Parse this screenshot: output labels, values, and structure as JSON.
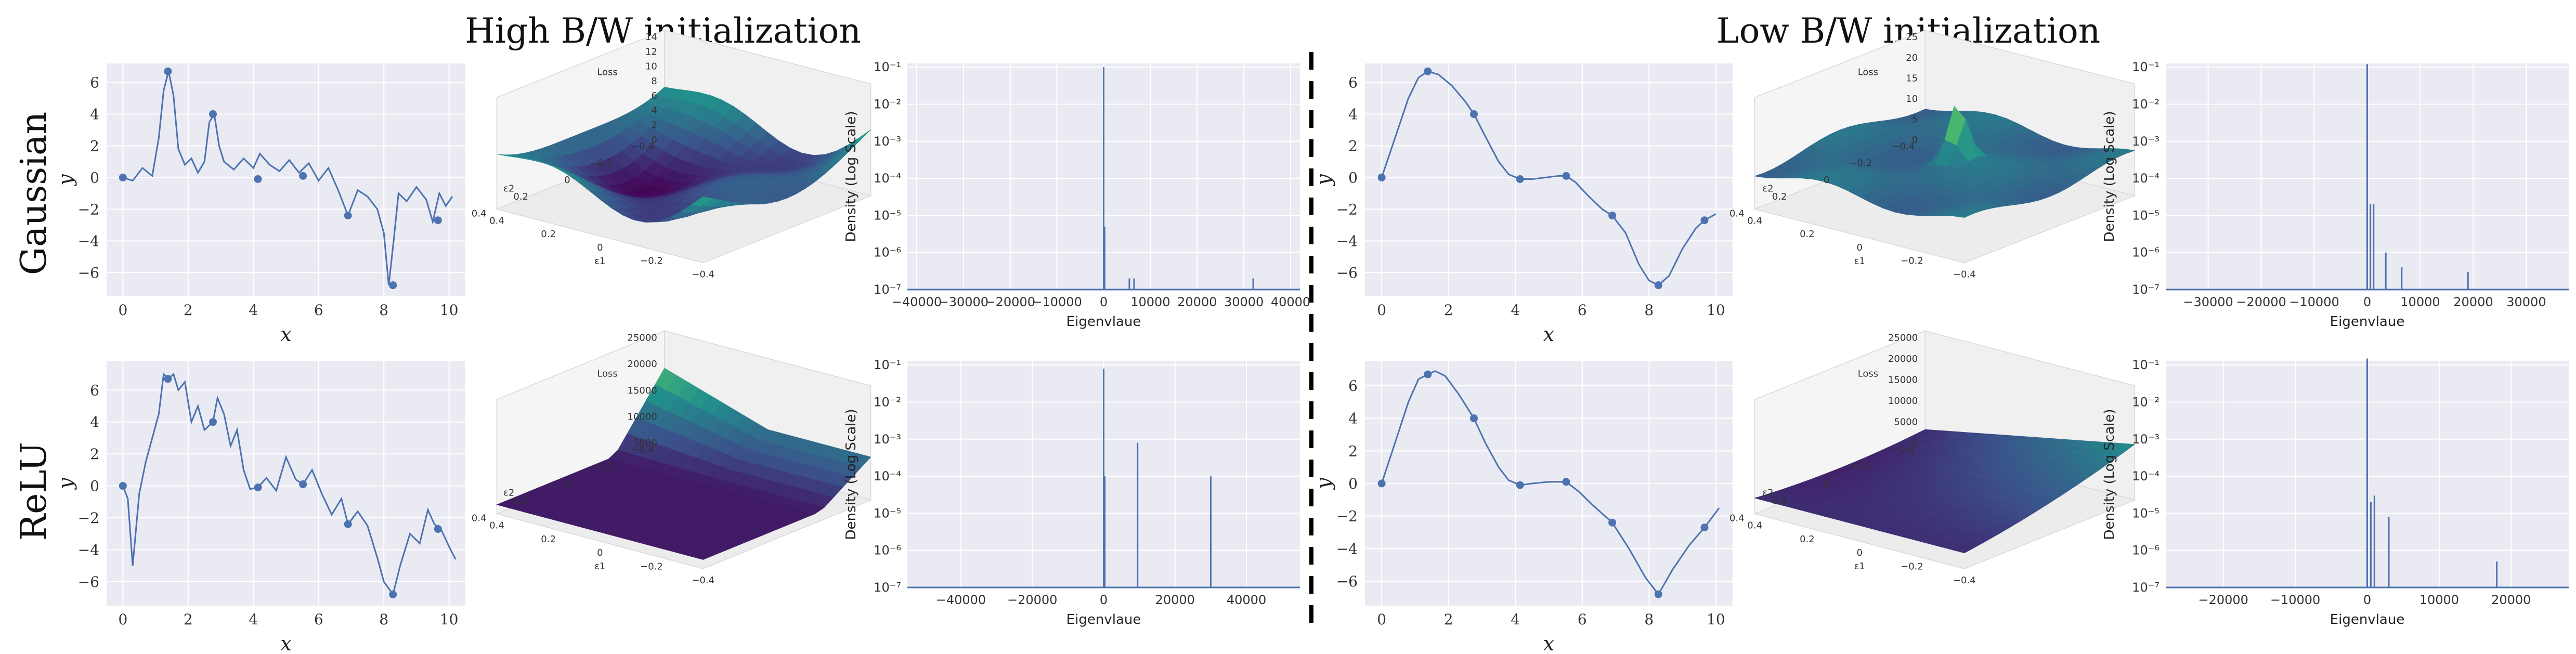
{
  "titles": {
    "high": "High B/W initialization",
    "low": "Low B/W initialization"
  },
  "row_labels": [
    "Gaussian",
    "ReLU"
  ],
  "colors": {
    "line": "#4c72b0",
    "panel_bg": "#eaeaf2",
    "grid": "#ffffff",
    "divider": "#000000"
  },
  "chart_data": [
    {
      "id": "gauss-high-fit",
      "type": "line",
      "xlabel": "x",
      "ylabel": "y",
      "xlim": [
        -0.5,
        10.5
      ],
      "ylim": [
        -7.5,
        7.2
      ],
      "xticks": [
        0,
        2,
        4,
        6,
        8,
        10
      ],
      "yticks": [
        -6,
        -4,
        -2,
        0,
        2,
        4,
        6
      ],
      "line": {
        "x": [
          0,
          0.3,
          0.6,
          0.9,
          1.1,
          1.25,
          1.4,
          1.55,
          1.7,
          1.9,
          2.1,
          2.3,
          2.5,
          2.65,
          2.8,
          2.95,
          3.1,
          3.4,
          3.7,
          4.0,
          4.2,
          4.5,
          4.8,
          5.1,
          5.4,
          5.7,
          6.0,
          6.3,
          6.6,
          6.9,
          7.2,
          7.5,
          7.8,
          8.0,
          8.15,
          8.3,
          8.45,
          8.7,
          9.0,
          9.3,
          9.5,
          9.7,
          9.9,
          10.1
        ],
        "y": [
          0,
          -0.2,
          0.6,
          0.1,
          2.5,
          5.5,
          6.7,
          5.2,
          1.8,
          0.8,
          1.2,
          0.3,
          1.0,
          3.5,
          4.0,
          2.0,
          1.0,
          0.5,
          1.2,
          0.6,
          1.5,
          0.8,
          0.4,
          1.1,
          0.3,
          0.9,
          -0.2,
          0.6,
          -0.8,
          -2.4,
          -0.8,
          -1.2,
          -2.0,
          -3.5,
          -6.8,
          -4.0,
          -1.0,
          -1.5,
          -0.6,
          -1.4,
          -2.8,
          -1.0,
          -1.8,
          -1.2
        ]
      },
      "points": {
        "x": [
          0,
          1.38,
          2.76,
          4.14,
          5.52,
          6.9,
          8.28,
          9.66
        ],
        "y": [
          0,
          6.7,
          4.0,
          -0.1,
          0.1,
          -2.4,
          -6.8,
          -2.7
        ]
      }
    },
    {
      "id": "gauss-high-surface",
      "type": "surface",
      "zlabel": "Loss",
      "zticks": [
        0,
        2,
        4,
        6,
        8,
        10,
        12,
        14
      ],
      "xticks": [
        0.4,
        0.2,
        0.0,
        -0.2,
        -0.4
      ],
      "yticks": [
        -0.4,
        -0.2,
        0.0,
        0.2,
        0.4
      ],
      "xlabel": "ε1",
      "ylabel": "ε2"
    },
    {
      "id": "gauss-high-spectrum",
      "type": "spectrum",
      "xlabel": "Eigenvlaue",
      "ylabel": "Density (Log Scale)",
      "log_y": true,
      "xlim": [
        -42000,
        42000
      ],
      "xticks": [
        -40000,
        -30000,
        -20000,
        -10000,
        0,
        10000,
        20000,
        30000,
        40000
      ],
      "yticks": [
        1e-07,
        1e-06,
        1e-05,
        0.0001,
        0.001,
        0.01,
        0.1
      ],
      "ytick_labels": [
        "10⁻⁷",
        "10⁻⁶",
        "10⁻⁵",
        "10⁻⁴",
        "10⁻³",
        "10⁻²",
        "10⁻¹"
      ],
      "ylim_exp": [
        -7,
        -1
      ],
      "peaks": {
        "x": [
          0,
          200,
          5500,
          6500,
          32000
        ],
        "y": [
          0.1,
          5e-06,
          2e-07,
          2e-07,
          2e-07
        ]
      }
    },
    {
      "id": "gauss-low-fit",
      "type": "line",
      "xlabel": "x",
      "ylabel": "y",
      "xlim": [
        -0.5,
        10.5
      ],
      "ylim": [
        -7.5,
        7.2
      ],
      "xticks": [
        0,
        2,
        4,
        6,
        8,
        10
      ],
      "yticks": [
        -6,
        -4,
        -2,
        0,
        2,
        4,
        6
      ],
      "line": {
        "x": [
          0,
          0.4,
          0.8,
          1.1,
          1.38,
          1.7,
          2.1,
          2.5,
          2.76,
          3.1,
          3.5,
          3.8,
          4.14,
          4.5,
          4.9,
          5.3,
          5.52,
          5.8,
          6.2,
          6.6,
          6.9,
          7.3,
          7.7,
          8.0,
          8.28,
          8.6,
          9.0,
          9.4,
          9.66,
          10.0
        ],
        "y": [
          0,
          2.5,
          5.0,
          6.3,
          6.7,
          6.5,
          5.8,
          4.8,
          4.0,
          2.6,
          1.0,
          0.2,
          -0.1,
          -0.1,
          0.0,
          0.1,
          0.1,
          -0.3,
          -1.2,
          -2.0,
          -2.4,
          -3.5,
          -5.5,
          -6.5,
          -6.8,
          -6.2,
          -4.5,
          -3.2,
          -2.7,
          -2.3
        ]
      },
      "points": {
        "x": [
          0,
          1.38,
          2.76,
          4.14,
          5.52,
          6.9,
          8.28,
          9.66
        ],
        "y": [
          0,
          6.7,
          4.0,
          -0.1,
          0.1,
          -2.4,
          -6.8,
          -2.7
        ]
      }
    },
    {
      "id": "gauss-low-surface",
      "type": "surface",
      "zlabel": "Loss",
      "zticks": [
        0,
        5,
        10,
        15,
        20,
        25
      ],
      "xticks": [
        0.4,
        0.2,
        0.0,
        -0.2,
        -0.4
      ],
      "yticks": [
        -0.4,
        -0.2,
        0.0,
        0.2,
        0.4
      ],
      "xlabel": "ε1",
      "ylabel": "ε2"
    },
    {
      "id": "gauss-low-spectrum",
      "type": "spectrum",
      "xlabel": "Eigenvlaue",
      "ylabel": "Density (Log Scale)",
      "log_y": true,
      "xlim": [
        -38000,
        38000
      ],
      "xticks": [
        -30000,
        -20000,
        -10000,
        0,
        10000,
        20000,
        30000
      ],
      "yticks": [
        1e-07,
        1e-06,
        1e-05,
        0.0001,
        0.001,
        0.01,
        0.1
      ],
      "ytick_labels": [
        "10⁻⁷",
        "10⁻⁶",
        "10⁻⁵",
        "10⁻⁴",
        "10⁻³",
        "10⁻²",
        "10⁻¹"
      ],
      "ylim_exp": [
        -7,
        -1
      ],
      "peaks": {
        "x": [
          0,
          600,
          1200,
          3500,
          6500,
          19000
        ],
        "y": [
          0.12,
          2e-05,
          2e-05,
          1e-06,
          4e-07,
          3e-07
        ]
      }
    },
    {
      "id": "relu-high-fit",
      "type": "line",
      "xlabel": "x",
      "ylabel": "y",
      "xlim": [
        -0.5,
        10.5
      ],
      "ylim": [
        -7.5,
        7.8
      ],
      "xticks": [
        0,
        2,
        4,
        6,
        8,
        10
      ],
      "yticks": [
        -6,
        -4,
        -2,
        0,
        2,
        4,
        6
      ],
      "line": {
        "x": [
          0,
          0.15,
          0.3,
          0.5,
          0.7,
          0.9,
          1.1,
          1.25,
          1.4,
          1.55,
          1.7,
          1.9,
          2.1,
          2.3,
          2.5,
          2.76,
          2.9,
          3.1,
          3.3,
          3.5,
          3.7,
          3.9,
          4.14,
          4.4,
          4.7,
          5.0,
          5.3,
          5.52,
          5.8,
          6.1,
          6.4,
          6.7,
          6.9,
          7.2,
          7.5,
          7.8,
          8.0,
          8.28,
          8.5,
          8.8,
          9.1,
          9.35,
          9.55,
          9.75,
          10.0,
          10.2
        ],
        "y": [
          0,
          -0.8,
          -5.0,
          -0.5,
          1.5,
          3.0,
          4.5,
          7.0,
          6.7,
          7.0,
          6.0,
          6.5,
          4.0,
          5.0,
          3.5,
          4.0,
          5.5,
          4.5,
          2.5,
          3.5,
          1.0,
          -0.2,
          -0.1,
          0.5,
          -0.3,
          1.8,
          0.4,
          0.1,
          1.0,
          -0.5,
          -1.8,
          -0.8,
          -2.4,
          -1.6,
          -2.5,
          -4.5,
          -6.0,
          -6.8,
          -5.0,
          -3.0,
          -3.6,
          -1.5,
          -2.4,
          -2.7,
          -3.8,
          -4.6
        ]
      },
      "points": {
        "x": [
          0,
          1.38,
          2.76,
          4.14,
          5.52,
          6.9,
          8.28,
          9.66
        ],
        "y": [
          0,
          6.7,
          4.0,
          -0.1,
          0.1,
          -2.4,
          -6.8,
          -2.7
        ]
      }
    },
    {
      "id": "relu-high-surface",
      "type": "surface",
      "zlabel": "Loss",
      "zticks": [
        5000,
        10000,
        15000,
        20000,
        25000
      ],
      "xticks": [
        0.4,
        0.2,
        0.0,
        -0.2,
        -0.4
      ],
      "yticks": [
        -0.4,
        -0.2,
        0.0,
        0.2,
        0.4
      ],
      "xlabel": "ε1",
      "ylabel": "ε2"
    },
    {
      "id": "relu-high-spectrum",
      "type": "spectrum",
      "xlabel": "Eigenvlaue",
      "ylabel": "Density (Log Scale)",
      "log_y": true,
      "xlim": [
        -55000,
        55000
      ],
      "xticks": [
        -40000,
        -20000,
        0,
        20000,
        40000
      ],
      "yticks": [
        1e-07,
        1e-06,
        1e-05,
        0.0001,
        0.001,
        0.01,
        0.1
      ],
      "ytick_labels": [
        "10⁻⁷",
        "10⁻⁶",
        "10⁻⁵",
        "10⁻⁴",
        "10⁻³",
        "10⁻²",
        "10⁻¹"
      ],
      "ylim_exp": [
        -7,
        -1
      ],
      "peaks": {
        "x": [
          0,
          300,
          9500,
          30000
        ],
        "y": [
          0.08,
          0.0001,
          0.0008,
          0.0001
        ]
      }
    },
    {
      "id": "relu-low-fit",
      "type": "line",
      "xlabel": "x",
      "ylabel": "y",
      "xlim": [
        -0.5,
        10.5
      ],
      "ylim": [
        -7.5,
        7.5
      ],
      "xticks": [
        0,
        2,
        4,
        6,
        8,
        10
      ],
      "yticks": [
        -6,
        -4,
        -2,
        0,
        2,
        4,
        6
      ],
      "line": {
        "x": [
          0,
          0.4,
          0.8,
          1.1,
          1.38,
          1.6,
          1.9,
          2.3,
          2.76,
          3.1,
          3.5,
          3.8,
          4.14,
          4.5,
          5.0,
          5.52,
          5.9,
          6.3,
          6.9,
          7.4,
          7.9,
          8.28,
          8.7,
          9.2,
          9.66,
          10.1
        ],
        "y": [
          0,
          2.5,
          5.0,
          6.4,
          6.7,
          6.9,
          6.6,
          5.5,
          4.0,
          2.5,
          1.0,
          0.2,
          -0.1,
          0.0,
          0.1,
          0.1,
          -0.5,
          -1.3,
          -2.4,
          -4.0,
          -5.8,
          -6.8,
          -5.3,
          -3.8,
          -2.7,
          -1.5
        ]
      },
      "points": {
        "x": [
          0,
          1.38,
          2.76,
          4.14,
          5.52,
          6.9,
          8.28,
          9.66
        ],
        "y": [
          0,
          6.7,
          4.0,
          -0.1,
          0.1,
          -2.4,
          -6.8,
          -2.7
        ]
      }
    },
    {
      "id": "relu-low-surface",
      "type": "surface",
      "zlabel": "Loss",
      "zticks": [
        0,
        5000,
        10000,
        15000,
        20000,
        25000
      ],
      "xticks": [
        0.4,
        0.2,
        0.0,
        -0.2,
        -0.4
      ],
      "yticks": [
        -0.4,
        -0.2,
        0.0,
        0.2,
        0.4
      ],
      "xlabel": "ε1",
      "ylabel": "ε2"
    },
    {
      "id": "relu-low-spectrum",
      "type": "spectrum",
      "xlabel": "Eigenvlaue",
      "ylabel": "Density (Log Scale)",
      "log_y": true,
      "xlim": [
        -28000,
        28000
      ],
      "xticks": [
        -20000,
        -10000,
        0,
        10000,
        20000
      ],
      "yticks": [
        1e-07,
        1e-06,
        1e-05,
        0.0001,
        0.001,
        0.01,
        0.1
      ],
      "ytick_labels": [
        "10⁻⁷",
        "10⁻⁶",
        "10⁻⁵",
        "10⁻⁴",
        "10⁻³",
        "10⁻²",
        "10⁻¹"
      ],
      "ylim_exp": [
        -7,
        -1
      ],
      "peaks": {
        "x": [
          0,
          500,
          1000,
          3000,
          18000
        ],
        "y": [
          0.15,
          2e-05,
          3e-05,
          8e-06,
          5e-07
        ]
      }
    }
  ]
}
